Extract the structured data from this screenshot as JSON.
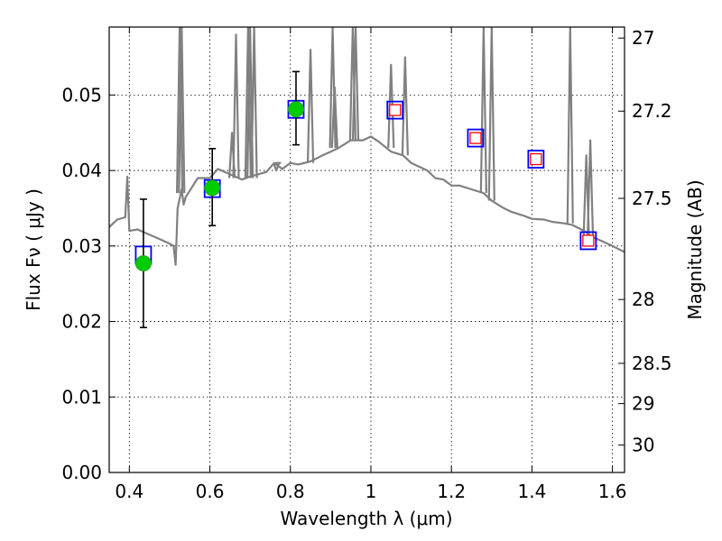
{
  "chart_data": {
    "type": "scatter",
    "xlabel": "Wavelength  λ (μm)",
    "ylabel": "Flux  Fν  ( μJy )",
    "y2label": "Magnitude (AB)",
    "xlim": [
      0.35,
      1.63
    ],
    "ylim": [
      0.0,
      0.059
    ],
    "grid": true,
    "x_ticks": [
      0.4,
      0.6,
      0.8,
      1.0,
      1.2,
      1.4,
      1.6
    ],
    "x_tick_labels": [
      "0.4",
      "0.6",
      "0.8",
      "1",
      "1.2",
      "1.4",
      "1.6"
    ],
    "y_ticks": [
      0.0,
      0.01,
      0.02,
      0.03,
      0.04,
      0.05
    ],
    "y_tick_labels": [
      "0.00",
      "0.01",
      "0.02",
      "0.03",
      "0.04",
      "0.05"
    ],
    "y2_tick_labels": [
      "27",
      "27.2",
      "27.5",
      "28",
      "28.5",
      "29",
      "30"
    ],
    "colors": {
      "model": "#808080",
      "observed_fill": "#00cc00",
      "observed_edge": "#2ca02c",
      "blue_box": "#0000ff",
      "red_box": "#ff0000",
      "errorbar": "#000000"
    },
    "series": [
      {
        "name": "model spectrum",
        "style": "line",
        "x": [
          0.35,
          0.37,
          0.39,
          0.395,
          0.4,
          0.42,
          0.45,
          0.48,
          0.5,
          0.51,
          0.515,
          0.52,
          0.53,
          0.535,
          0.54,
          0.55,
          0.57,
          0.6,
          0.62,
          0.65,
          0.68,
          0.7,
          0.72,
          0.74,
          0.76,
          0.78,
          0.8,
          0.82,
          0.85,
          0.88,
          0.9,
          0.92,
          0.95,
          0.98,
          1.0,
          1.02,
          1.05,
          1.08,
          1.1,
          1.12,
          1.14,
          1.16,
          1.18,
          1.2,
          1.22,
          1.25,
          1.28,
          1.3,
          1.33,
          1.35,
          1.38,
          1.4,
          1.43,
          1.45,
          1.48,
          1.5,
          1.53,
          1.55,
          1.58,
          1.6,
          1.63
        ],
        "y": [
          0.0325,
          0.0335,
          0.0338,
          0.0392,
          0.032,
          0.0322,
          0.0315,
          0.0308,
          0.0303,
          0.03,
          0.0275,
          0.035,
          0.0375,
          0.0355,
          0.0365,
          0.0373,
          0.039,
          0.039,
          0.0402,
          0.0395,
          0.0388,
          0.0392,
          0.0395,
          0.0398,
          0.041,
          0.0402,
          0.041,
          0.0408,
          0.0412,
          0.042,
          0.0425,
          0.043,
          0.044,
          0.044,
          0.0445,
          0.0438,
          0.0425,
          0.042,
          0.041,
          0.0405,
          0.04,
          0.039,
          0.0388,
          0.038,
          0.038,
          0.0375,
          0.037,
          0.036,
          0.035,
          0.0345,
          0.034,
          0.0336,
          0.0335,
          0.0332,
          0.033,
          0.0328,
          0.032,
          0.0312,
          0.0305,
          0.03,
          0.0292
        ]
      },
      {
        "name": "emission lines",
        "style": "spikes",
        "x": [
          0.525,
          0.53,
          0.655,
          0.665,
          0.695,
          0.7,
          0.71,
          0.765,
          0.77,
          0.85,
          0.905,
          0.91,
          0.955,
          0.962,
          1.05,
          1.085,
          1.28,
          1.3,
          1.495,
          1.535,
          1.545
        ],
        "y": [
          0.059,
          0.059,
          0.045,
          0.058,
          0.059,
          0.059,
          0.059,
          0.04,
          0.041,
          0.056,
          0.059,
          0.051,
          0.059,
          0.059,
          0.054,
          0.055,
          0.059,
          0.059,
          0.059,
          0.042,
          0.044
        ],
        "base": [
          0.037,
          0.037,
          0.039,
          0.039,
          0.039,
          0.039,
          0.039,
          0.041,
          0.041,
          0.041,
          0.043,
          0.043,
          0.044,
          0.044,
          0.043,
          0.042,
          0.037,
          0.036,
          0.033,
          0.031,
          0.031
        ]
      },
      {
        "name": "model photometry (observed bands)",
        "style": "blue_square",
        "x": [
          0.435,
          0.606,
          0.814,
          1.06,
          1.26,
          1.41,
          1.54
        ],
        "y": [
          0.0288,
          0.0376,
          0.0481,
          0.048,
          0.0443,
          0.0415,
          0.0307
        ]
      },
      {
        "name": "model photometry (predicted bands)",
        "style": "red_square",
        "x": [
          1.06,
          1.26,
          1.41,
          1.54
        ],
        "y": [
          0.048,
          0.0443,
          0.0415,
          0.0307
        ]
      },
      {
        "name": "observed flux",
        "style": "green_circle",
        "x": [
          0.435,
          0.606,
          0.814
        ],
        "y": [
          0.0277,
          0.0377,
          0.0481
        ],
        "err_low": [
          0.0085,
          0.005,
          0.0047
        ],
        "err_high": [
          0.0085,
          0.0052,
          0.005
        ]
      }
    ]
  }
}
